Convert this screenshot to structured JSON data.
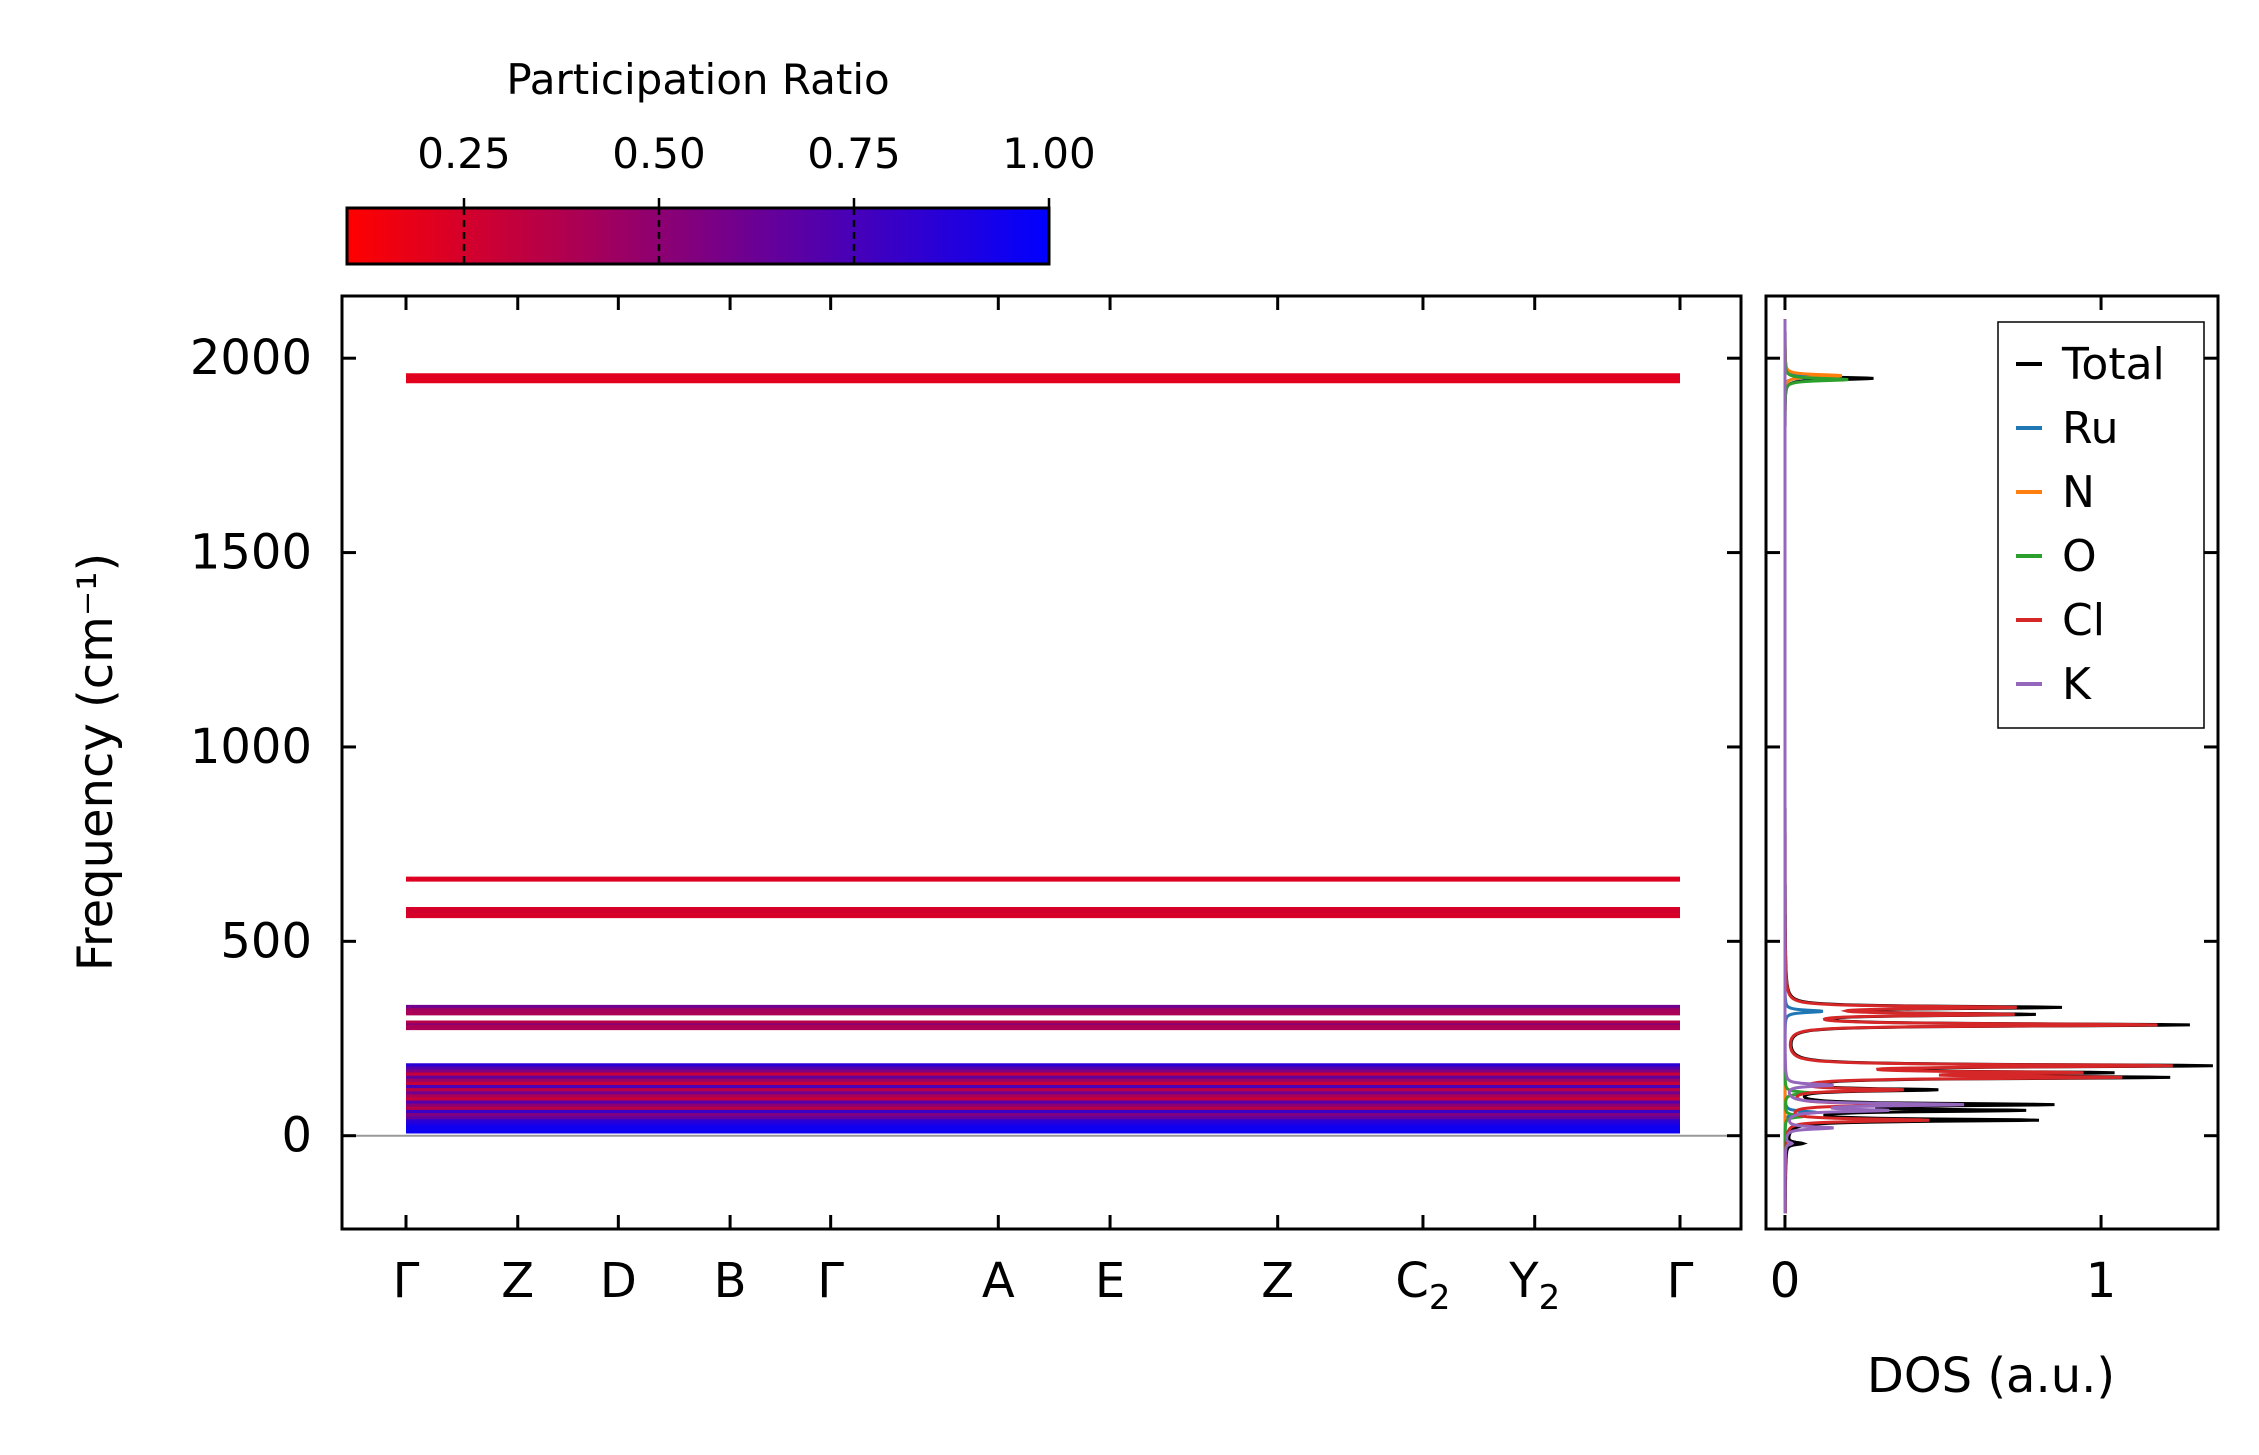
{
  "chart_data": [
    {
      "type": "line",
      "title": "",
      "ylabel": "Frequency (cm⁻¹)",
      "ylim": [
        -240,
        2160
      ],
      "yticks": [
        0,
        500,
        1000,
        1500,
        2000
      ],
      "ytick_labels": [
        "0",
        "500",
        "1000",
        "1500",
        "2000"
      ],
      "kpath": [
        {
          "label": "Γ",
          "sub": "",
          "pos": 0.0
        },
        {
          "label": "Z",
          "sub": "",
          "pos": 0.5
        },
        {
          "label": "D",
          "sub": "",
          "pos": 0.95
        },
        {
          "label": "B",
          "sub": "",
          "pos": 1.45
        },
        {
          "label": "Γ",
          "sub": "",
          "pos": 1.9
        },
        {
          "label": "A",
          "sub": "",
          "pos": 2.65
        },
        {
          "label": "E",
          "sub": "",
          "pos": 3.15
        },
        {
          "label": "Z",
          "sub": "",
          "pos": 3.9
        },
        {
          "label": "C",
          "sub": "2",
          "pos": 4.55
        },
        {
          "label": "Y",
          "sub": "2",
          "pos": 5.05
        },
        {
          "label": "Γ",
          "sub": "",
          "pos": 5.7
        }
      ],
      "colorbar": {
        "label": "Participation Ratio",
        "range": [
          0.1,
          1.0
        ],
        "ticks": [
          0.25,
          0.5,
          0.75,
          1.0
        ],
        "tick_labels": [
          "0.25",
          "0.50",
          "0.75",
          "1.00"
        ],
        "low_color": "#ff0000",
        "high_color": "#0000ff"
      },
      "bands": [
        {
          "freq": 1955,
          "pr": 0.2
        },
        {
          "freq": 1948,
          "pr": 0.22
        },
        {
          "freq": 1942,
          "pr": 0.2
        },
        {
          "freq": 660,
          "pr": 0.22
        },
        {
          "freq": 582,
          "pr": 0.24
        },
        {
          "freq": 575,
          "pr": 0.26
        },
        {
          "freq": 566,
          "pr": 0.24
        },
        {
          "freq": 330,
          "pr": 0.6
        },
        {
          "freq": 322,
          "pr": 0.45
        },
        {
          "freq": 316,
          "pr": 0.4
        },
        {
          "freq": 290,
          "pr": 0.35
        },
        {
          "freq": 283,
          "pr": 0.5
        },
        {
          "freq": 278,
          "pr": 0.4
        },
        {
          "freq": 180,
          "pr": 0.85
        },
        {
          "freq": 172,
          "pr": 0.7
        },
        {
          "freq": 164,
          "pr": 0.55
        },
        {
          "freq": 156,
          "pr": 0.3
        },
        {
          "freq": 148,
          "pr": 0.65
        },
        {
          "freq": 140,
          "pr": 0.45
        },
        {
          "freq": 132,
          "pr": 0.3
        },
        {
          "freq": 124,
          "pr": 0.75
        },
        {
          "freq": 116,
          "pr": 0.35
        },
        {
          "freq": 108,
          "pr": 0.6
        },
        {
          "freq": 100,
          "pr": 0.4
        },
        {
          "freq": 92,
          "pr": 0.3
        },
        {
          "freq": 84,
          "pr": 0.7
        },
        {
          "freq": 76,
          "pr": 0.5
        },
        {
          "freq": 68,
          "pr": 0.35
        },
        {
          "freq": 60,
          "pr": 0.8
        },
        {
          "freq": 52,
          "pr": 0.55
        },
        {
          "freq": 44,
          "pr": 0.65
        },
        {
          "freq": 36,
          "pr": 0.85
        },
        {
          "freq": 28,
          "pr": 0.9
        },
        {
          "freq": 20,
          "pr": 0.95
        },
        {
          "freq": 12,
          "pr": 0.95
        }
      ]
    },
    {
      "type": "line",
      "title": "",
      "xlabel": "DOS (a.u.)",
      "xlim": [
        -0.06,
        1.37
      ],
      "xticks": [
        0,
        1
      ],
      "xtick_labels": [
        "0",
        "1"
      ],
      "ylim": [
        -240,
        2160
      ],
      "legend_position": "top-right",
      "series": [
        {
          "name": "Total",
          "color": "#000000",
          "peaks": [
            [
              1948,
              0.28
            ],
            [
              330,
              0.84
            ],
            [
              312,
              0.74
            ],
            [
              285,
              1.26
            ],
            [
              180,
              1.3
            ],
            [
              162,
              0.9
            ],
            [
              150,
              1.12
            ],
            [
              118,
              0.45
            ],
            [
              80,
              0.8
            ],
            [
              65,
              0.7
            ],
            [
              40,
              0.78
            ],
            [
              -20,
              0.05
            ]
          ]
        },
        {
          "name": "Ru",
          "color": "#1f77b4",
          "peaks": [
            [
              1952,
              0.1
            ],
            [
              320,
              0.12
            ],
            [
              60,
              0.1
            ]
          ]
        },
        {
          "name": "N",
          "color": "#ff7f0e",
          "peaks": [
            [
              1955,
              0.18
            ]
          ]
        },
        {
          "name": "O",
          "color": "#2ca02c",
          "peaks": [
            [
              1945,
              0.2
            ],
            [
              110,
              0.08
            ],
            [
              50,
              0.06
            ]
          ]
        },
        {
          "name": "Cl",
          "color": "#d62728",
          "peaks": [
            [
              330,
              0.7
            ],
            [
              312,
              0.68
            ],
            [
              285,
              1.16
            ],
            [
              180,
              1.18
            ],
            [
              162,
              0.82
            ],
            [
              150,
              0.98
            ],
            [
              118,
              0.35
            ],
            [
              80,
              0.45
            ],
            [
              40,
              0.45
            ]
          ]
        },
        {
          "name": "K",
          "color": "#9467bd",
          "peaks": [
            [
              130,
              0.15
            ],
            [
              80,
              0.55
            ],
            [
              65,
              0.3
            ],
            [
              20,
              0.15
            ],
            [
              -20,
              0.02
            ]
          ]
        }
      ]
    }
  ]
}
